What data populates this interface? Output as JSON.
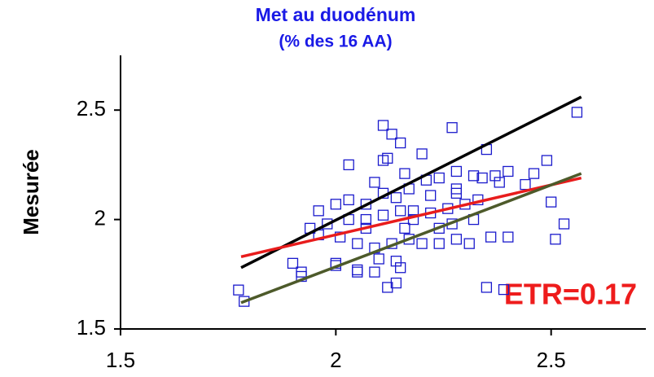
{
  "chart_data": {
    "type": "scatter",
    "title": "Met au duodénum",
    "subtitle": "(% des 16 AA)",
    "y_label": "Mesurée",
    "annotation": "ETR=0.17",
    "xlim": [
      1.5,
      2.72
    ],
    "ylim": [
      1.5,
      2.75
    ],
    "xticks": [
      1.5,
      2,
      2.5
    ],
    "yticks": [
      1.5,
      2,
      2.5
    ],
    "marker_color": "#1a1acc",
    "x": [
      1.774,
      1.787,
      1.9,
      1.92,
      1.92,
      2.0,
      2.0,
      2.05,
      2.05,
      2.09,
      2.11,
      2.13,
      2.15,
      2.12,
      2.11,
      2.03,
      2.27,
      2.56,
      2.35,
      2.49,
      2.46,
      2.5,
      2.53,
      2.51,
      2.4,
      2.37,
      2.32,
      2.28,
      2.2,
      2.16,
      2.24,
      2.36,
      2.4,
      2.44,
      2.38,
      2.34,
      2.28,
      2.22,
      2.17,
      2.11,
      2.07,
      2.03,
      2.0,
      1.96,
      1.98,
      1.94,
      1.96,
      2.01,
      2.05,
      2.09,
      2.13,
      2.17,
      2.2,
      2.24,
      2.28,
      2.31,
      2.1,
      2.14,
      2.15,
      2.12,
      2.14,
      2.35,
      2.39,
      2.11,
      2.15,
      2.18,
      2.22,
      2.26,
      2.3,
      2.33,
      2.32,
      2.27,
      2.18,
      2.07,
      2.03,
      2.07,
      2.16,
      2.24,
      2.09,
      2.21,
      2.28,
      2.14
    ],
    "values": [
      1.678,
      1.626,
      1.8,
      1.74,
      1.76,
      1.8,
      1.79,
      1.76,
      1.77,
      1.76,
      2.43,
      2.39,
      2.35,
      2.28,
      2.27,
      2.25,
      2.42,
      2.49,
      2.32,
      2.27,
      2.21,
      2.08,
      1.98,
      1.91,
      2.22,
      2.2,
      2.2,
      2.22,
      2.3,
      2.21,
      2.19,
      1.92,
      1.92,
      2.16,
      2.17,
      2.19,
      2.14,
      2.11,
      2.14,
      2.12,
      2.07,
      2.09,
      2.07,
      2.04,
      1.98,
      1.96,
      1.93,
      1.92,
      1.89,
      1.87,
      1.89,
      1.91,
      1.89,
      1.89,
      1.91,
      1.89,
      1.82,
      1.81,
      1.78,
      1.69,
      1.71,
      1.69,
      1.68,
      2.02,
      2.04,
      2.04,
      2.03,
      2.05,
      2.07,
      2.09,
      2.0,
      1.98,
      2.0,
      2.0,
      2.0,
      1.96,
      1.96,
      1.96,
      2.17,
      2.18,
      2.12,
      2.1
    ],
    "lines": [
      {
        "color": "#000000",
        "x": [
          1.78,
          2.57
        ],
        "values": [
          1.78,
          2.56
        ]
      },
      {
        "color": "#e81c1c",
        "x": [
          1.78,
          2.57
        ],
        "values": [
          1.83,
          2.19
        ]
      },
      {
        "color": "#4d5a2a",
        "x": [
          1.78,
          2.57
        ],
        "values": [
          1.62,
          2.21
        ]
      }
    ]
  }
}
